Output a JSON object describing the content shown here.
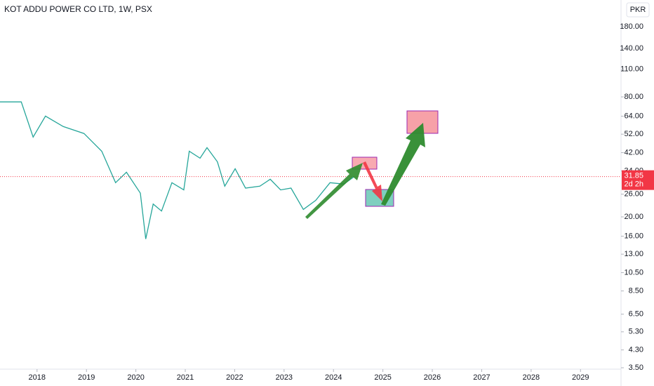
{
  "chart_data": {
    "type": "line",
    "title": "KOT ADDU POWER CO LTD, 1W, PSX",
    "currency": "PKR",
    "x": [
      2017.25,
      2017.68,
      2017.92,
      2018.17,
      2018.53,
      2018.95,
      2019.31,
      2019.59,
      2019.81,
      2020.09,
      2020.2,
      2020.35,
      2020.52,
      2020.73,
      2020.97,
      2021.08,
      2021.3,
      2021.44,
      2021.65,
      2021.8,
      2022.01,
      2022.22,
      2022.51,
      2022.72,
      2022.93,
      2023.14,
      2023.39,
      2023.64,
      2023.93,
      2024.21,
      2024.42
    ],
    "series": [
      {
        "name": "KOT ADDU POWER CO LTD",
        "color": "#26a69a",
        "values": [
          75.5,
          75.5,
          50.3,
          64.1,
          56.8,
          52.4,
          42.7,
          29.7,
          33.5,
          26.3,
          15.5,
          23.2,
          21.4,
          29.7,
          27.3,
          42.7,
          39.4,
          44.5,
          37.8,
          28.5,
          34.9,
          27.9,
          28.5,
          30.9,
          27.3,
          27.9,
          21.8,
          24.2,
          29.7,
          29.2,
          31.85
        ]
      }
    ],
    "last_price": {
      "value": 31.85,
      "label": "31.85",
      "countdown": "2d 2h",
      "color": "#f23645"
    },
    "xlim": [
      2017.25,
      2029.82
    ],
    "xticks": [
      2018,
      2019,
      2020,
      2021,
      2022,
      2023,
      2024,
      2025,
      2026,
      2027,
      2028,
      2029
    ],
    "ylim": [
      3,
      245
    ],
    "log_scale": true,
    "yticks": [
      {
        "value": 180,
        "label": "180.00"
      },
      {
        "value": 140,
        "label": "140.00"
      },
      {
        "value": 110,
        "label": "110.00"
      },
      {
        "value": 80,
        "label": "80.00"
      },
      {
        "value": 64,
        "label": "64.00"
      },
      {
        "value": 52,
        "label": "52.00"
      },
      {
        "value": 42,
        "label": "42.00"
      },
      {
        "value": 34,
        "label": "34.00"
      },
      {
        "value": 26,
        "label": "26.00"
      },
      {
        "value": 20,
        "label": "20.00"
      },
      {
        "value": 16,
        "label": "16.00"
      },
      {
        "value": 13,
        "label": "13.00"
      },
      {
        "value": 10.5,
        "label": "10.50"
      },
      {
        "value": 8.5,
        "label": "8.50"
      },
      {
        "value": 6.5,
        "label": "6.50"
      },
      {
        "value": 5.3,
        "label": "5.30"
      },
      {
        "value": 4.3,
        "label": "4.30"
      },
      {
        "value": 3.5,
        "label": "3.50"
      }
    ],
    "grid": false
  }
}
